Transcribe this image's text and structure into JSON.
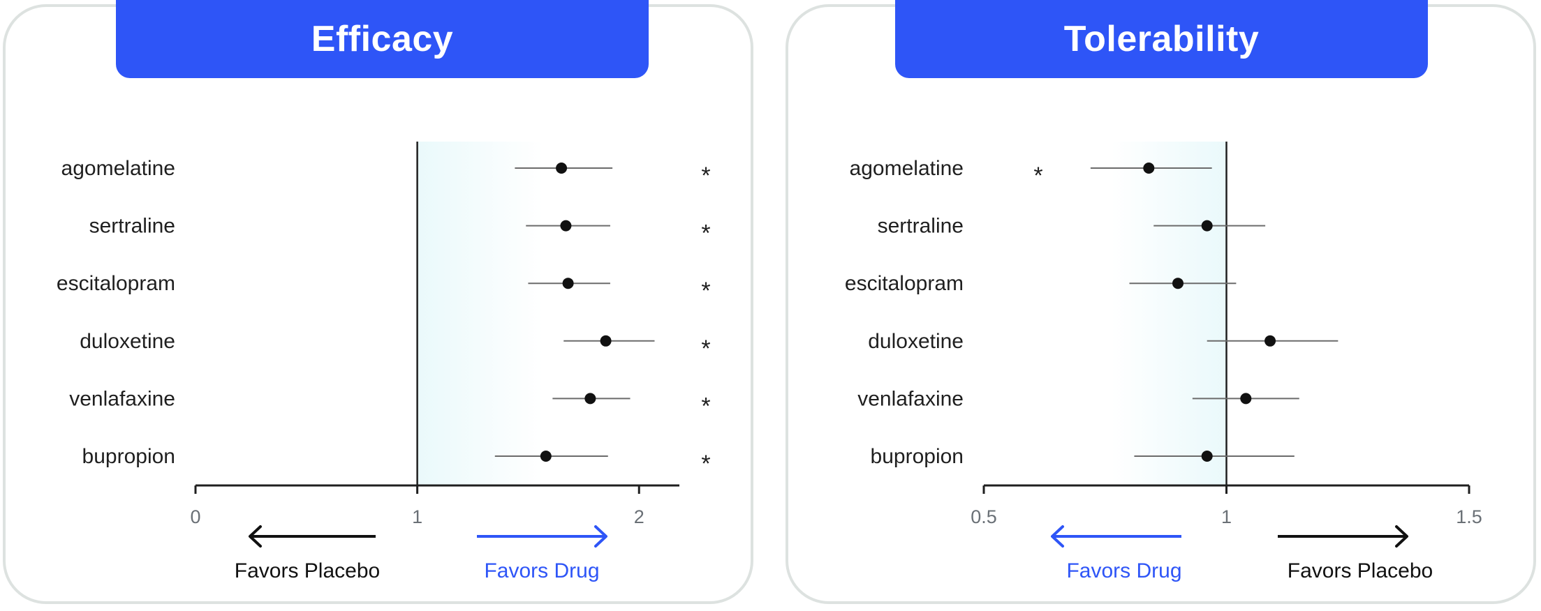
{
  "chart_data": [
    {
      "type": "forest",
      "title": "Efficacy",
      "drugs": [
        "agomelatine",
        "sertraline",
        "escitalopram",
        "duloxetine",
        "venlafaxine",
        "bupropion"
      ],
      "estimates": [
        1.65,
        1.67,
        1.68,
        1.85,
        1.78,
        1.58
      ],
      "ci_low": [
        1.44,
        1.49,
        1.5,
        1.66,
        1.61,
        1.35
      ],
      "ci_high": [
        1.88,
        1.87,
        1.87,
        2.07,
        1.96,
        1.86
      ],
      "significant": [
        true,
        true,
        true,
        true,
        true,
        true
      ],
      "significance_marker": "*",
      "reference_line": 1,
      "xlim": [
        0,
        2.1
      ],
      "xticks": [
        0,
        1,
        2
      ],
      "xtick_labels": [
        "0",
        "1",
        "2"
      ],
      "shaded_side": "right",
      "left_direction_label": "Favors Placebo",
      "right_direction_label": "Favors Drug",
      "left_direction_color": "#111111",
      "right_direction_color": "#2e55f7"
    },
    {
      "type": "forest",
      "title": "Tolerability",
      "drugs": [
        "agomelatine",
        "sertraline",
        "escitalopram",
        "duloxetine",
        "venlafaxine",
        "bupropion"
      ],
      "estimates": [
        0.84,
        0.96,
        0.9,
        1.09,
        1.04,
        0.96
      ],
      "ci_low": [
        0.72,
        0.85,
        0.8,
        0.96,
        0.93,
        0.81
      ],
      "ci_high": [
        0.97,
        1.08,
        1.02,
        1.23,
        1.15,
        1.14
      ],
      "significant": [
        true,
        false,
        false,
        false,
        false,
        false
      ],
      "significance_marker": "*",
      "reference_line": 1,
      "xlim": [
        0.5,
        1.5
      ],
      "xticks": [
        0.5,
        1,
        1.5
      ],
      "xtick_labels": [
        "0.5",
        "1",
        "1.5"
      ],
      "shaded_side": "left",
      "left_direction_label": "Favors Drug",
      "right_direction_label": "Favors Placebo",
      "left_direction_color": "#2e55f7",
      "right_direction_color": "#111111"
    }
  ]
}
